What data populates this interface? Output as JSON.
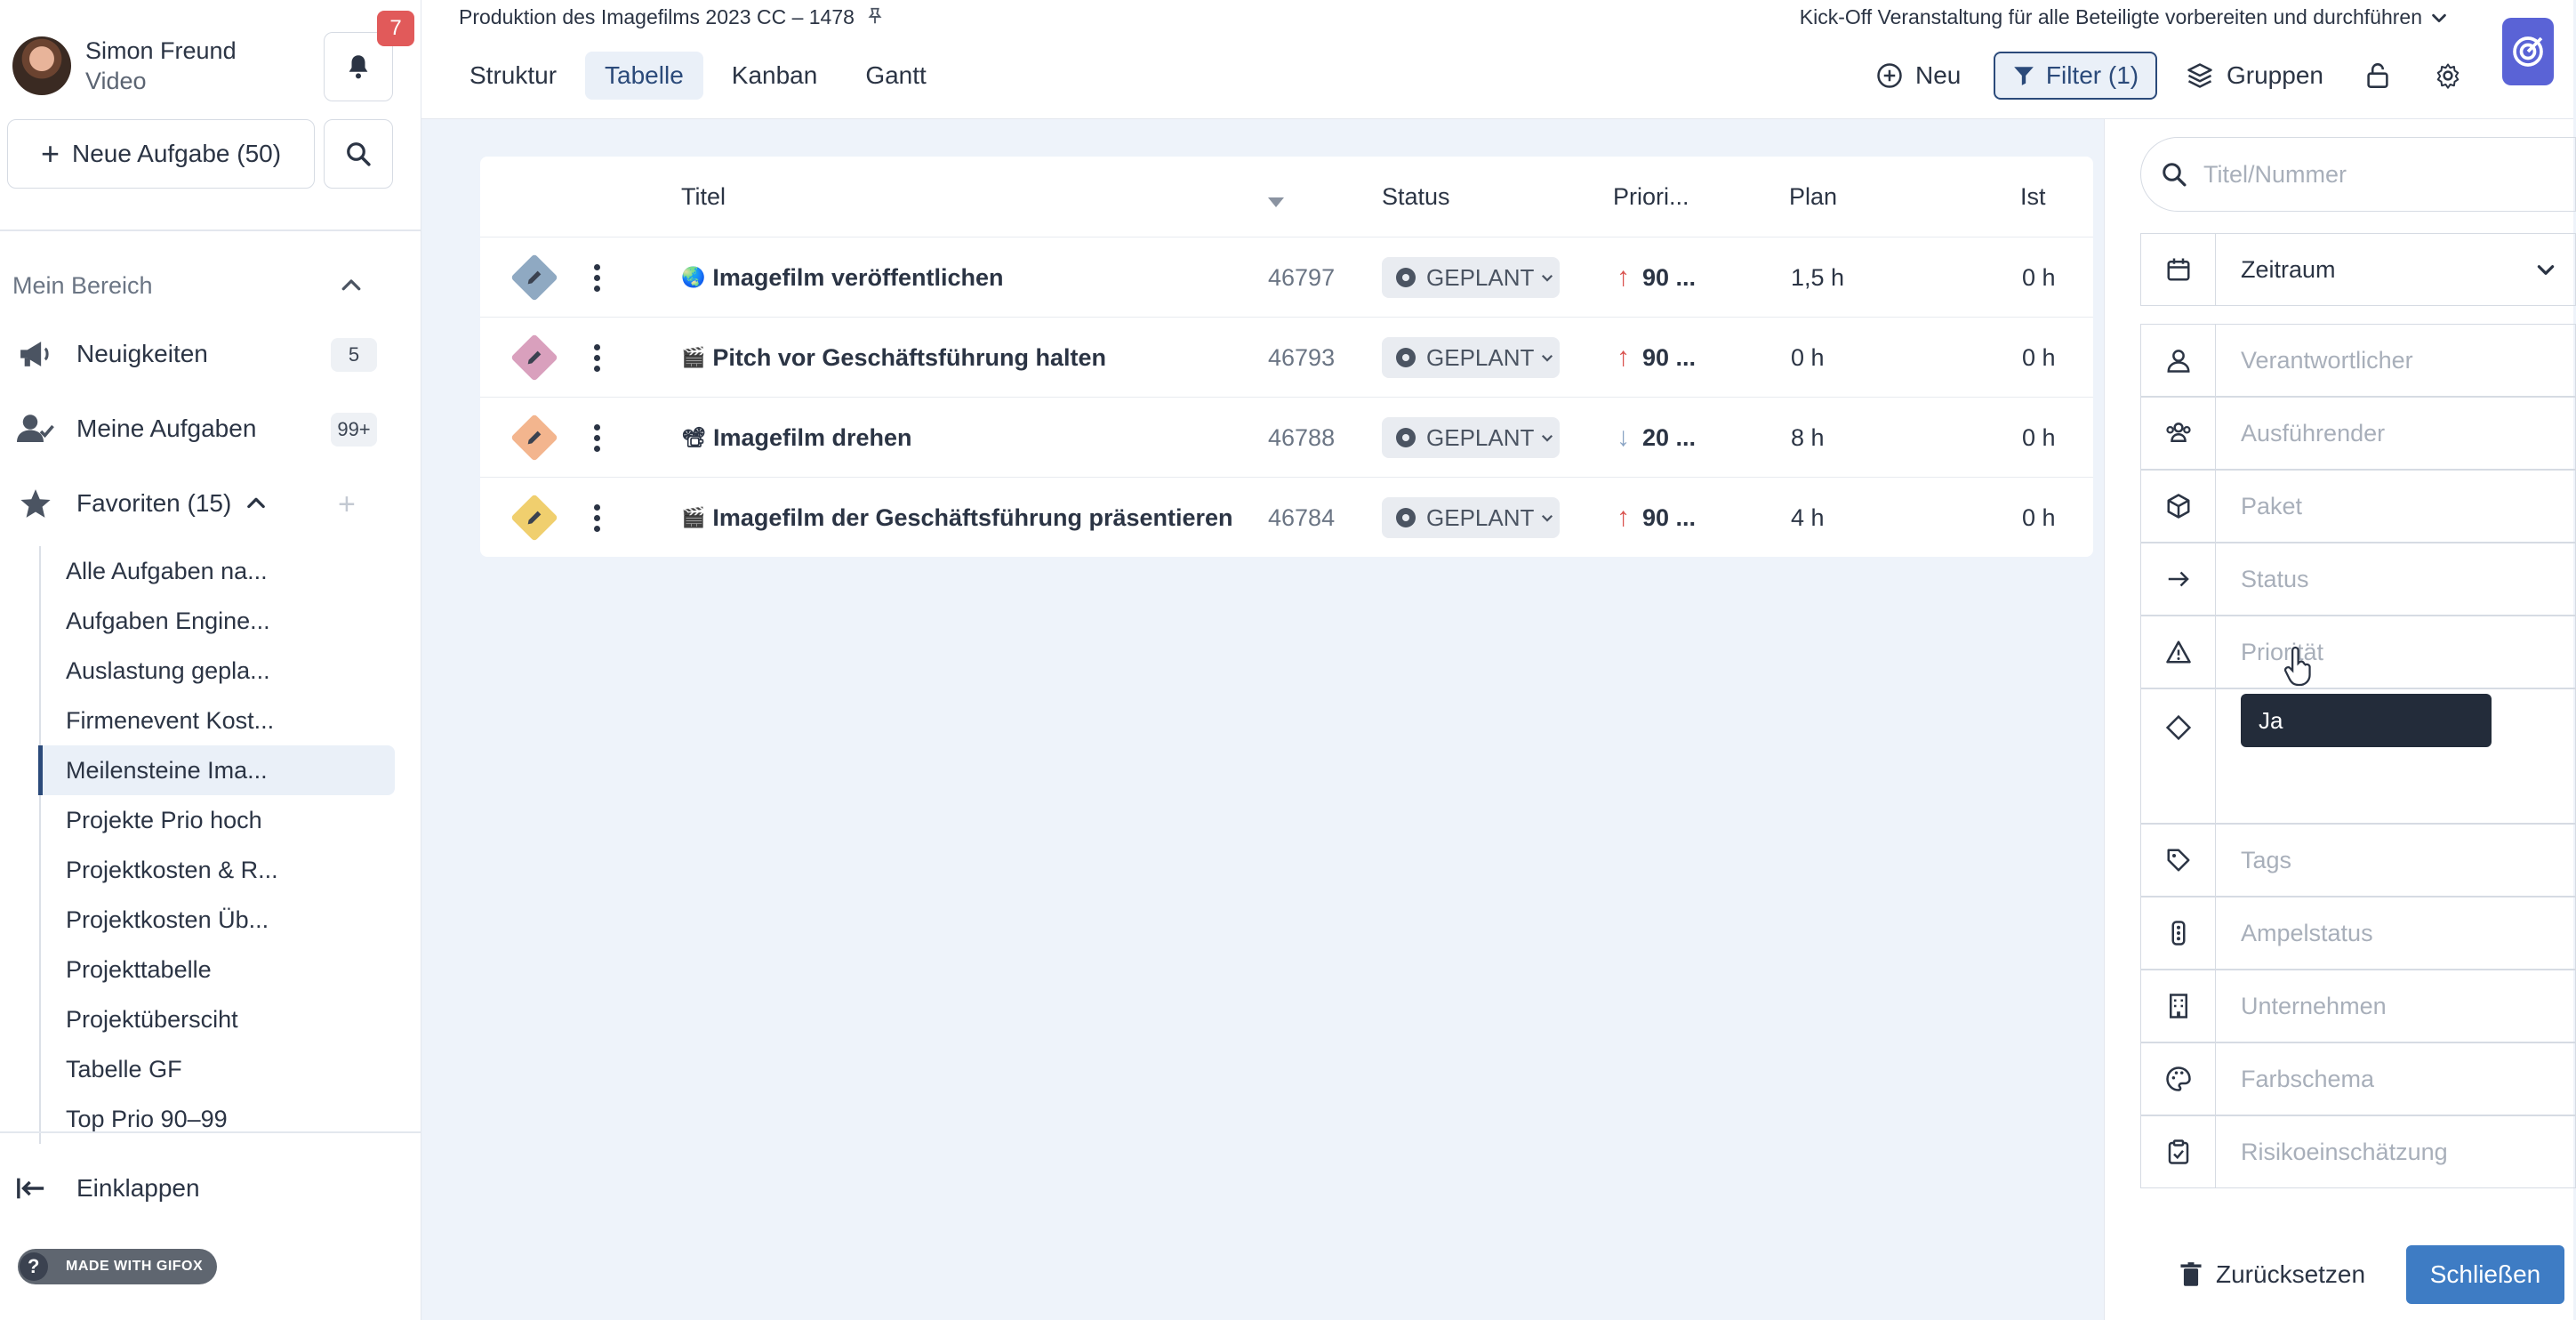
{
  "user": {
    "name": "Simon Freund",
    "role": "Video"
  },
  "notifications": {
    "count": "7"
  },
  "sidebar": {
    "new_task_label": "Neue Aufgabe (50)",
    "section_title": "Mein Bereich",
    "nav": [
      {
        "label": "Neuigkeiten",
        "count": "5",
        "icon": "megaphone-icon"
      },
      {
        "label": "Meine Aufgaben",
        "count": "99+",
        "icon": "user-check-icon"
      },
      {
        "label": "Favoriten (15)",
        "icon": "star-icon"
      }
    ],
    "favorites": [
      "Alle Aufgaben na...",
      "Aufgaben Engine...",
      "Auslastung gepla...",
      "Firmenevent Kost...",
      "Meilensteine Ima...",
      "Projekte Prio hoch",
      "Projektkosten & R...",
      "Projektkosten Üb...",
      "Projekttabelle",
      "Projektübersciht",
      "Tabelle GF",
      "Top Prio 90–99"
    ],
    "active_favorite": "Meilensteine Ima...",
    "collapse_label": "Einklappen",
    "gifox_label": "MADE WITH GIFOX"
  },
  "header": {
    "project_title": "Produktion des Imagefilms 2023 CC – 1478",
    "milestone": "Kick-Off Veranstaltung für alle Beteiligte vorbereiten und durchführen",
    "tabs": [
      "Struktur",
      "Tabelle",
      "Kanban",
      "Gantt"
    ],
    "active_tab": "Tabelle",
    "new_label": "Neu",
    "filter_label": "Filter (1)",
    "groups_label": "Gruppen"
  },
  "table": {
    "columns": {
      "title": "Titel",
      "status": "Status",
      "priority": "Priori...",
      "plan": "Plan",
      "actual": "Ist"
    },
    "rows": [
      {
        "emoji": "🌏",
        "title": "Imagefilm veröffentlichen",
        "number": "46797",
        "status": "GEPLANT",
        "priority": "90 ...",
        "prio_dir": "up",
        "plan": "1,5 h",
        "actual": "0 h",
        "color": "#8fa9c2"
      },
      {
        "emoji": "🎬",
        "title": "Pitch vor Geschäftsführung halten",
        "number": "46793",
        "status": "GEPLANT",
        "priority": "90 ...",
        "prio_dir": "up",
        "plan": "0 h",
        "actual": "0 h",
        "color": "#d9a0bd"
      },
      {
        "emoji": "📽",
        "title": "Imagefilm drehen",
        "number": "46788",
        "status": "GEPLANT",
        "priority": "20 ...",
        "prio_dir": "down",
        "plan": "8 h",
        "actual": "0 h",
        "color": "#f3b58e"
      },
      {
        "emoji": "🎬",
        "title": "Imagefilm der Geschäftsführung präsentieren",
        "number": "46784",
        "status": "GEPLANT",
        "priority": "90 ...",
        "prio_dir": "up",
        "plan": "4 h",
        "actual": "0 h",
        "color": "#f0cf6e"
      }
    ]
  },
  "filter_panel": {
    "search_placeholder": "Titel/Nummer",
    "zeitraum": "Zeitraum",
    "fields": [
      "Verantwortlicher",
      "Ausführender",
      "Paket",
      "Status",
      "Priorität"
    ],
    "milestone_chip": "Ja",
    "fields_lower": [
      "Tags",
      "Ampelstatus",
      "Unternehmen",
      "Farbschema",
      "Risikoeinschätzung"
    ],
    "reset_label": "Zurücksetzen",
    "close_label": "Schließen"
  },
  "colors": {
    "accent": "#2b4a7a",
    "primary_button": "#3e7cc4",
    "badge": "#e15a5a",
    "launcher": "#5a63d6",
    "up_arrow": "#d9534f",
    "down_arrow": "#8aa4c4"
  }
}
